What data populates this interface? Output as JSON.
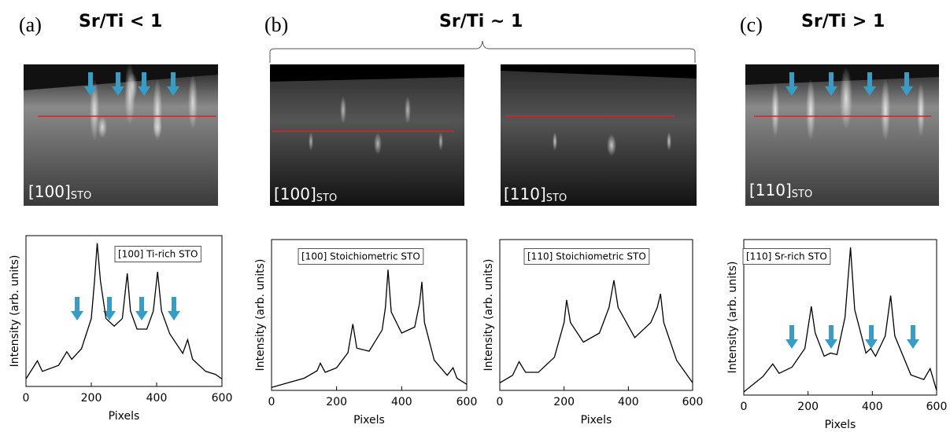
{
  "panels": [
    {
      "letter": "(a)",
      "header": "Sr/Ti < 1"
    },
    {
      "letter": "(b)",
      "header": "Sr/Ti ~ 1"
    },
    {
      "letter": "(c)",
      "header": "Sr/Ti > 1"
    }
  ],
  "image_labels": [
    {
      "text": "[100]",
      "sub": "STO"
    },
    {
      "text": "[100]",
      "sub": "STO"
    },
    {
      "text": "[110]",
      "sub": "STO"
    },
    {
      "text": "[110]",
      "sub": "STO"
    }
  ],
  "chart_data": [
    {
      "type": "line",
      "title": "[100] Ti-rich STO",
      "x_label": "Pixels",
      "y_label": "Intensity (arb. units)",
      "color": "#000000",
      "xlim": [
        0,
        600
      ],
      "xticks": [
        0,
        200,
        400,
        600
      ],
      "ylim": [
        0,
        100
      ],
      "x": [
        0,
        35,
        50,
        100,
        125,
        140,
        170,
        200,
        210,
        218,
        228,
        245,
        270,
        295,
        310,
        320,
        340,
        370,
        390,
        403,
        415,
        440,
        480,
        495,
        510,
        550,
        580,
        600
      ],
      "values": [
        5,
        17,
        10,
        14,
        23,
        18,
        25,
        45,
        70,
        95,
        70,
        45,
        40,
        45,
        75,
        50,
        38,
        38,
        50,
        76,
        50,
        35,
        22,
        31,
        18,
        10,
        8,
        5
      ]
    },
    {
      "type": "line",
      "title": "[100] Stoichiometric STO",
      "x_label": "Pixels",
      "y_label": "Intensity (arb. units)",
      "color": "#000000",
      "xlim": [
        0,
        600
      ],
      "xticks": [
        0,
        200,
        400,
        600
      ],
      "ylim": [
        0,
        100
      ],
      "x": [
        0,
        50,
        100,
        140,
        150,
        165,
        200,
        235,
        250,
        262,
        300,
        340,
        350,
        358,
        368,
        400,
        440,
        455,
        462,
        470,
        500,
        540,
        558,
        570,
        600
      ],
      "values": [
        2,
        5,
        8,
        13,
        18,
        12,
        15,
        25,
        44,
        28,
        26,
        40,
        55,
        80,
        52,
        38,
        42,
        58,
        72,
        45,
        20,
        10,
        15,
        8,
        4
      ]
    },
    {
      "type": "line",
      "title": "[110] Stoichiometric STO",
      "x_label": "Pixels",
      "y_label": "Intensity (arb. units)",
      "color": "#000000",
      "xlim": [
        0,
        600
      ],
      "xticks": [
        0,
        200,
        400,
        600
      ],
      "ylim": [
        0,
        100
      ],
      "x": [
        0,
        40,
        60,
        80,
        120,
        170,
        200,
        208,
        220,
        260,
        310,
        340,
        355,
        368,
        420,
        470,
        490,
        500,
        510,
        550,
        600
      ],
      "values": [
        5,
        10,
        19,
        12,
        12,
        22,
        45,
        60,
        45,
        32,
        38,
        55,
        73,
        55,
        35,
        45,
        55,
        64,
        45,
        20,
        5
      ]
    },
    {
      "type": "line",
      "title": "[110] Sr-rich STO",
      "x_label": "Pixels",
      "y_label": "Intensity (arb. units)",
      "color": "#000000",
      "xlim": [
        0,
        600
      ],
      "xticks": [
        0,
        200,
        400,
        600
      ],
      "ylim": [
        0,
        100
      ],
      "x": [
        0,
        60,
        90,
        110,
        150,
        190,
        210,
        222,
        250,
        270,
        290,
        315,
        332,
        345,
        380,
        395,
        410,
        440,
        457,
        470,
        520,
        560,
        580,
        600
      ],
      "values": [
        2,
        12,
        20,
        14,
        18,
        30,
        57,
        40,
        25,
        27,
        26,
        50,
        95,
        55,
        27,
        30,
        25,
        38,
        64,
        38,
        13,
        10,
        17,
        3
      ]
    }
  ]
}
